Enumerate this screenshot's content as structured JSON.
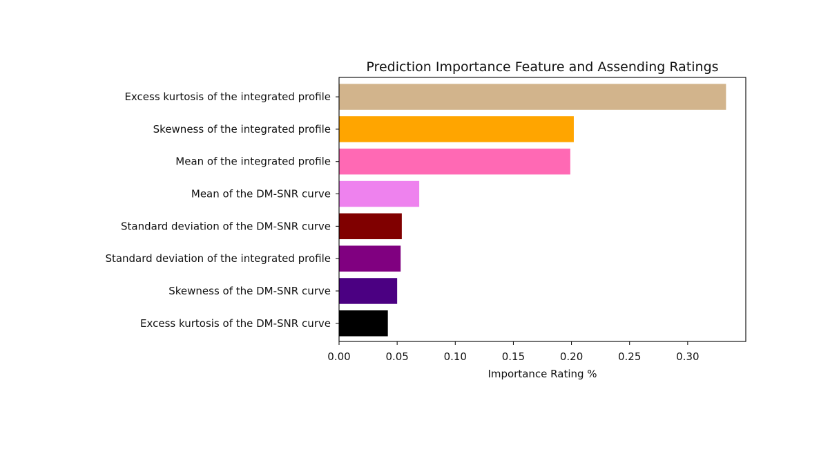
{
  "chart_data": {
    "type": "bar",
    "orientation": "horizontal",
    "title": "Prediction Importance Feature and Assending Ratings",
    "xlabel": "Importance Rating %",
    "ylabel": "",
    "xlim": [
      0,
      0.35
    ],
    "xticks": [
      "0.00",
      "0.05",
      "0.10",
      "0.15",
      "0.20",
      "0.25",
      "0.30"
    ],
    "grid": false,
    "categories": [
      "Excess kurtosis of the integrated profile",
      "Skewness of the integrated profile",
      "Mean of the integrated profile",
      "Mean of the DM-SNR curve",
      "Standard deviation of the DM-SNR curve",
      "Standard deviation of the integrated profile",
      "Skewness of the DM-SNR curve",
      "Excess kurtosis of the DM-SNR curve"
    ],
    "values": [
      0.333,
      0.202,
      0.199,
      0.069,
      0.054,
      0.053,
      0.05,
      0.042
    ],
    "colors": [
      "#d2b48c",
      "#ffa500",
      "#ff69b4",
      "#ee82ee",
      "#800000",
      "#800080",
      "#4b0082",
      "#000000"
    ]
  }
}
